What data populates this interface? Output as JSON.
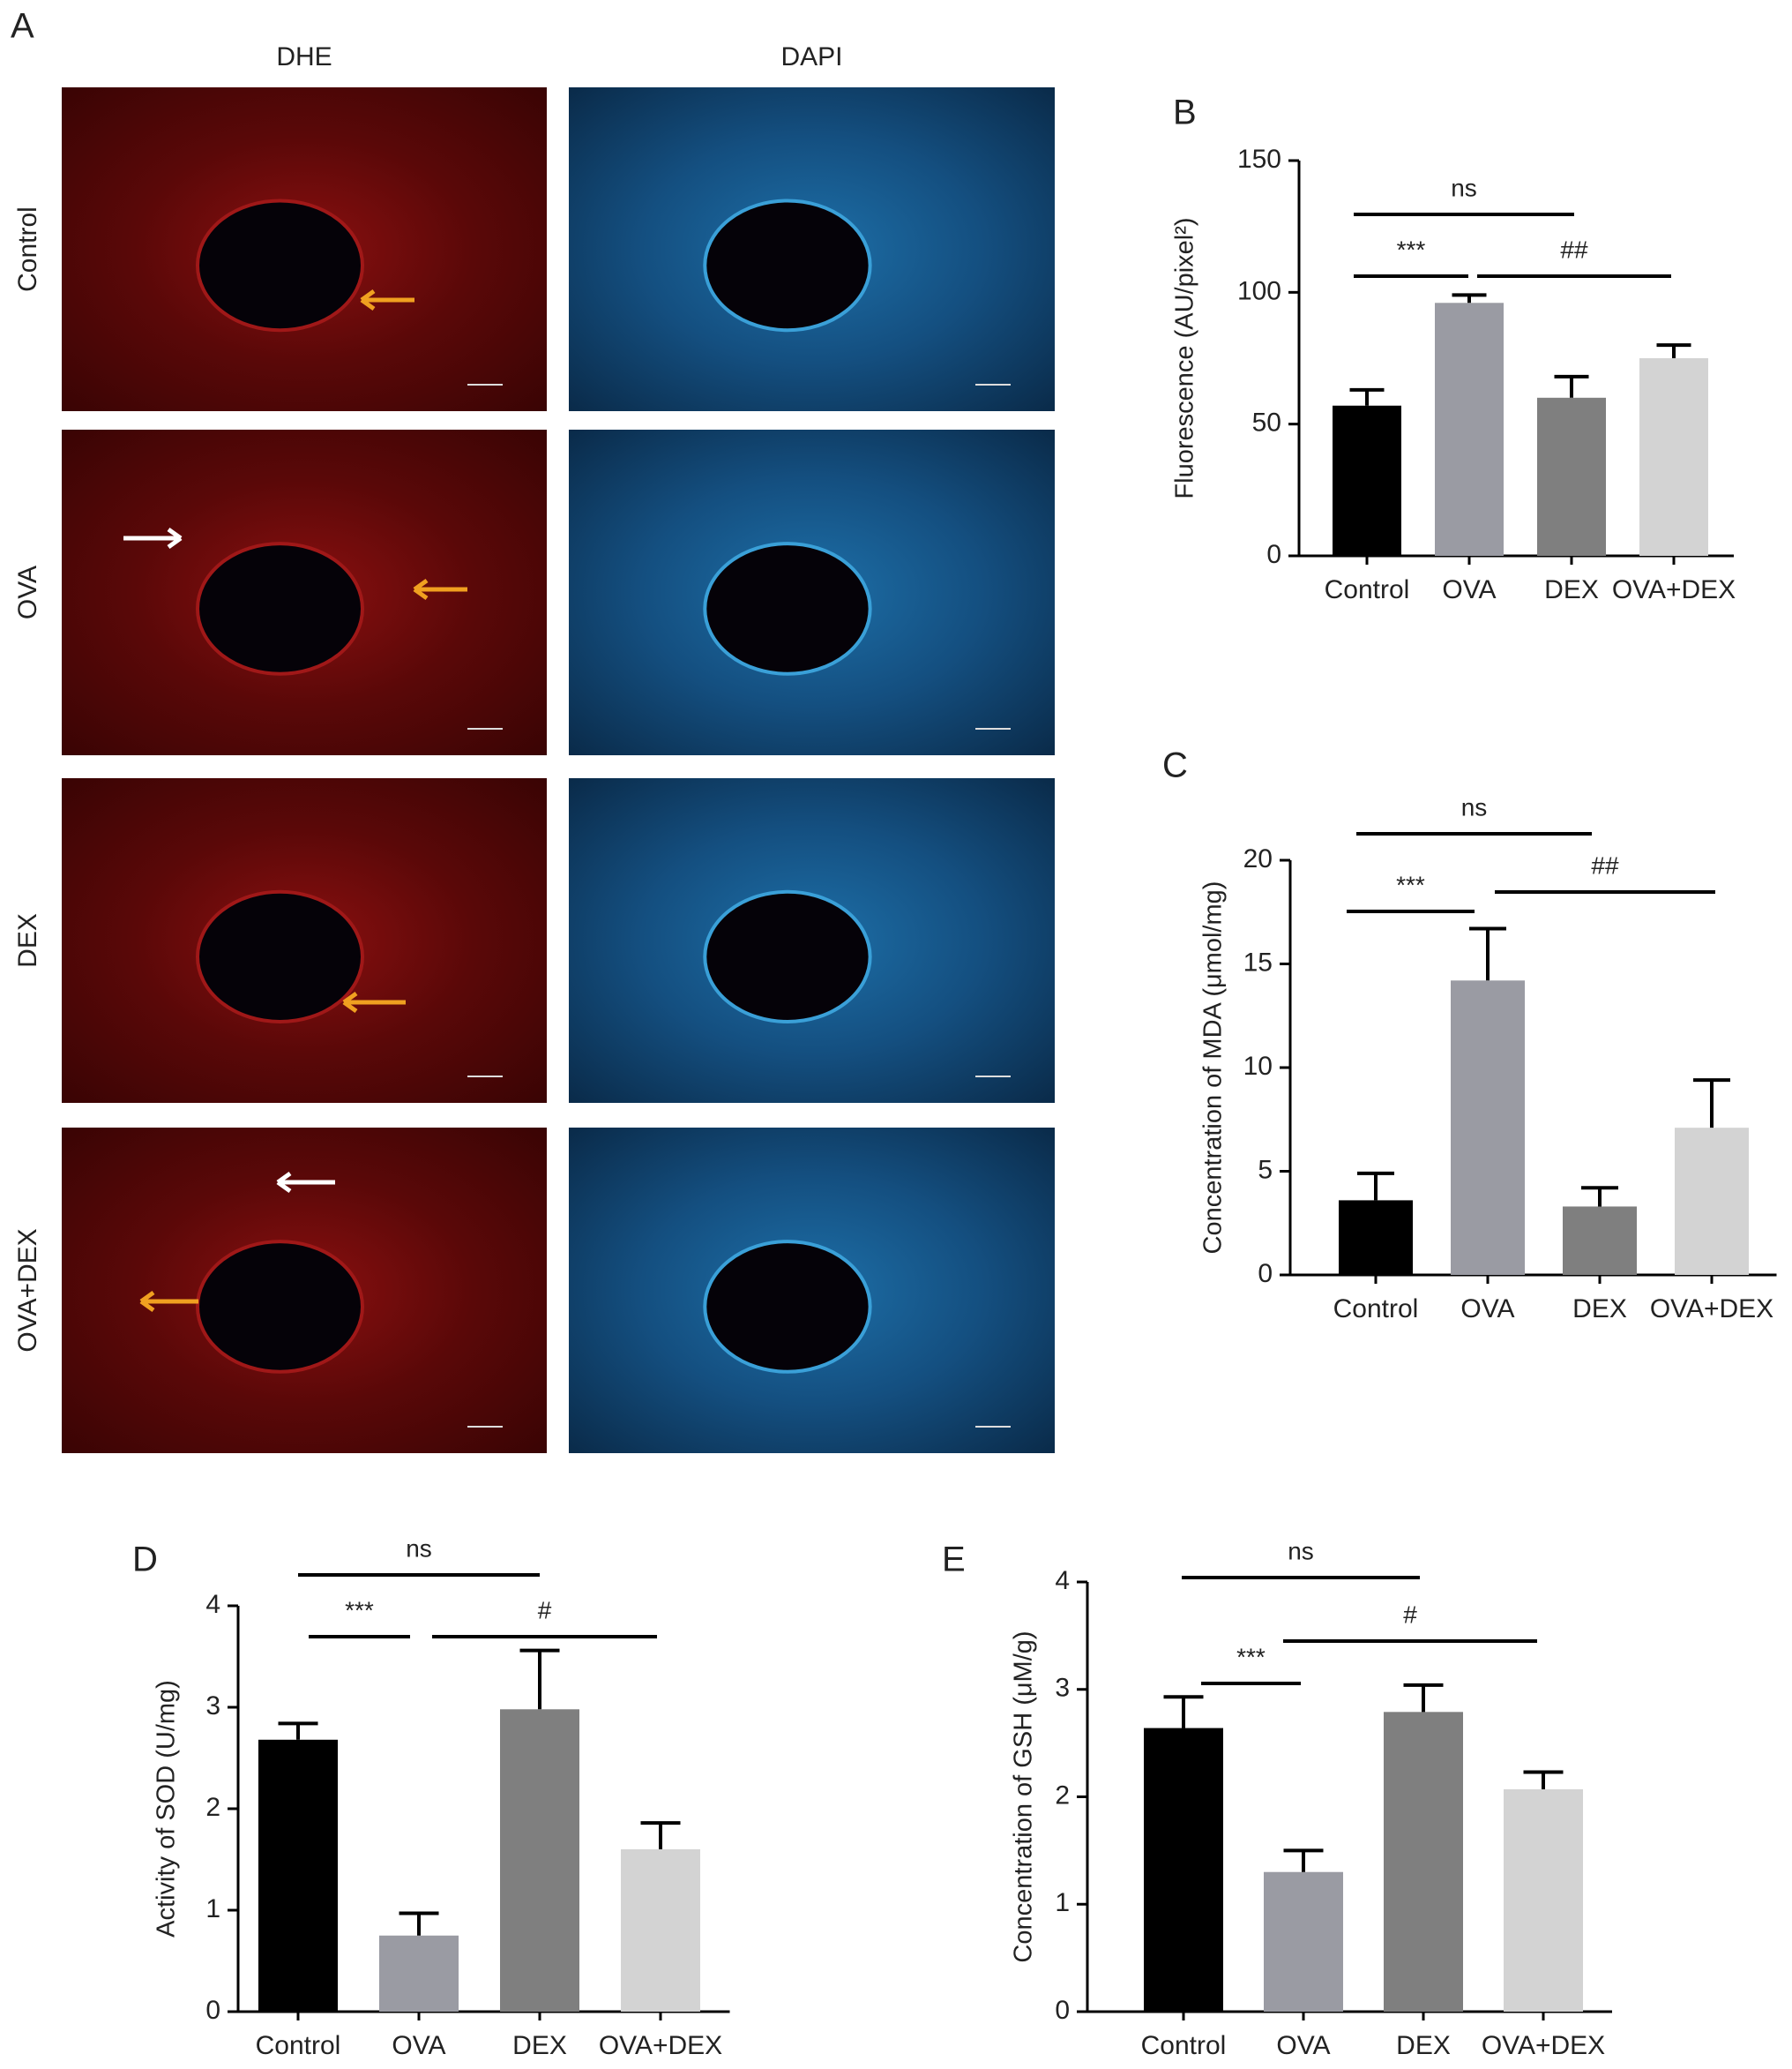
{
  "panel_a": {
    "label": "A",
    "columns": [
      "DHE",
      "DAPI"
    ],
    "rows": [
      "Control",
      "OVA",
      "DEX",
      "OVA+DEX"
    ]
  },
  "chart_data": [
    {
      "type": "bar",
      "panel": "B",
      "ylabel": "Fluorescence (AU/pixel²)",
      "categories": [
        "Control",
        "OVA",
        "DEX",
        "OVA+DEX"
      ],
      "values": [
        57,
        96,
        60,
        75
      ],
      "errors": [
        6,
        3,
        8,
        5
      ],
      "colors": [
        "#000000",
        "#9a9ba3",
        "#7f7f7f",
        "#d3d3d3"
      ],
      "ylim": [
        0,
        150
      ],
      "yticks": [
        0,
        50,
        100,
        150
      ],
      "annotations": [
        "ns",
        "***",
        "##"
      ]
    },
    {
      "type": "bar",
      "panel": "C",
      "ylabel": "Concentration of MDA (μmol/mg)",
      "categories": [
        "Control",
        "OVA",
        "DEX",
        "OVA+DEX"
      ],
      "values": [
        3.6,
        14.2,
        3.3,
        7.1
      ],
      "errors": [
        1.3,
        2.5,
        0.9,
        2.3
      ],
      "colors": [
        "#000000",
        "#9a9ba3",
        "#7f7f7f",
        "#d3d3d3"
      ],
      "ylim": [
        0,
        20
      ],
      "yticks": [
        0,
        5,
        10,
        15,
        20
      ],
      "annotations": [
        "ns",
        "***",
        "##"
      ]
    },
    {
      "type": "bar",
      "panel": "D",
      "ylabel": "Activity of SOD (U/mg)",
      "categories": [
        "Control",
        "OVA",
        "DEX",
        "OVA+DEX"
      ],
      "values": [
        2.68,
        0.75,
        2.98,
        1.6
      ],
      "errors": [
        0.16,
        0.22,
        0.58,
        0.26
      ],
      "colors": [
        "#000000",
        "#9a9ba3",
        "#7f7f7f",
        "#d3d3d3"
      ],
      "ylim": [
        0,
        4
      ],
      "yticks": [
        0,
        1,
        2,
        3,
        4
      ],
      "annotations": [
        "ns",
        "***",
        "#"
      ]
    },
    {
      "type": "bar",
      "panel": "E",
      "ylabel": "Concentration of GSH (μM/g)",
      "categories": [
        "Control",
        "OVA",
        "DEX",
        "OVA+DEX"
      ],
      "values": [
        2.64,
        1.3,
        2.79,
        2.07
      ],
      "errors": [
        0.29,
        0.2,
        0.25,
        0.16
      ],
      "colors": [
        "#000000",
        "#9a9ba3",
        "#7f7f7f",
        "#d3d3d3"
      ],
      "ylim": [
        0,
        4
      ],
      "yticks": [
        0,
        1,
        2,
        3,
        4
      ],
      "annotations": [
        "ns",
        "***",
        "#"
      ]
    }
  ]
}
